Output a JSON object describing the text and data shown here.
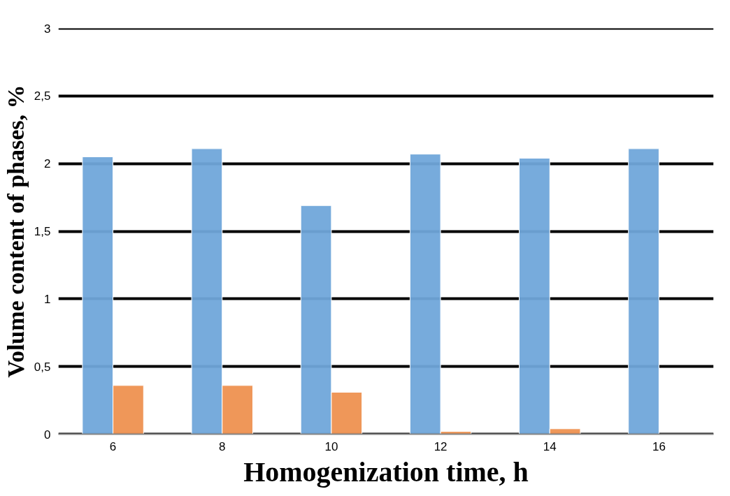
{
  "chart_data": {
    "type": "bar",
    "xlabel": "Homogenization time, h",
    "ylabel": "Volume content of phases, %",
    "categories": [
      "6",
      "8",
      "10",
      "12",
      "14",
      "16"
    ],
    "series": [
      {
        "color": "#70a6da",
        "values": [
          2.05,
          2.11,
          1.69,
          2.07,
          2.04,
          2.11
        ]
      },
      {
        "color": "#ee9150",
        "values": [
          0.36,
          0.36,
          0.31,
          0.02,
          0.04,
          null
        ]
      }
    ],
    "ylim": [
      0,
      3
    ],
    "yticks": [
      0,
      {
        "value": 0.5,
        "label": "0,5"
      },
      1,
      {
        "value": 1.5,
        "label": "1,5"
      },
      2,
      {
        "value": 2.5,
        "label": "2,5"
      },
      3
    ],
    "grid": "y"
  }
}
